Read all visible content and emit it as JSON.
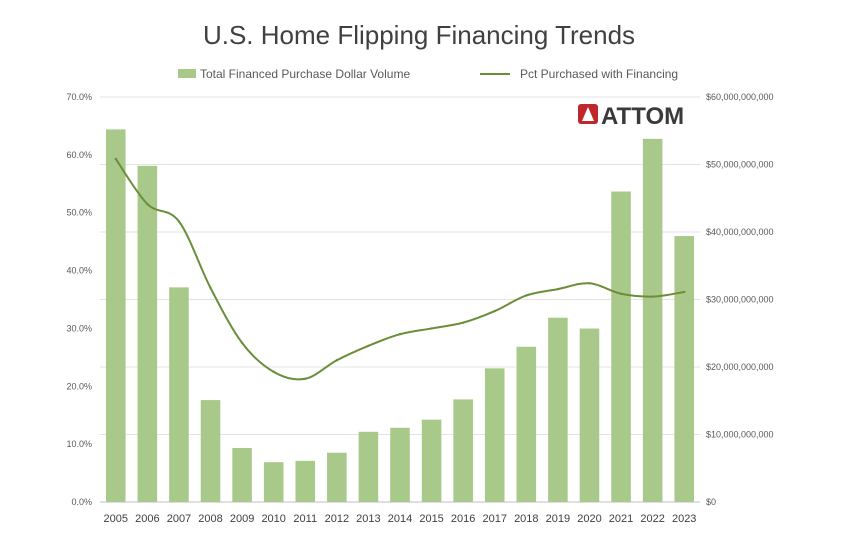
{
  "chart_data": {
    "type": "bar",
    "title": "U.S. Home Flipping Financing Trends",
    "logo_text": "ATTOM",
    "categories": [
      "2005",
      "2006",
      "2007",
      "2008",
      "2009",
      "2010",
      "2011",
      "2012",
      "2013",
      "2014",
      "2015",
      "2016",
      "2017",
      "2018",
      "2019",
      "2020",
      "2021",
      "2022",
      "2023"
    ],
    "series": [
      {
        "name": "Total Financed Purchase Dollar Volume",
        "type": "bar",
        "axis": "right",
        "color": "#a9c98a",
        "values": [
          55200000000,
          49800000000,
          31800000000,
          15100000000,
          8000000000,
          5900000000,
          6100000000,
          7300000000,
          10400000000,
          11000000000,
          12200000000,
          15200000000,
          19800000000,
          23000000000,
          27300000000,
          25700000000,
          46000000000,
          53800000000,
          39400000000
        ]
      },
      {
        "name": "Pct Purchased with Financing",
        "type": "line",
        "axis": "left",
        "color": "#6b8e3a",
        "values": [
          59.3,
          51.5,
          48.5,
          37.0,
          27.5,
          22.5,
          21.3,
          24.5,
          27.0,
          29.0,
          30.0,
          31.0,
          33.0,
          35.7,
          36.8,
          37.8,
          36.0,
          35.5,
          36.3
        ]
      }
    ],
    "yleft": {
      "min": 0,
      "max": 70,
      "step": 10,
      "tick_labels": [
        "0.0%",
        "10.0%",
        "20.0%",
        "30.0%",
        "40.0%",
        "50.0%",
        "60.0%",
        "70.0%"
      ]
    },
    "yright": {
      "min": 0,
      "max": 60000000000,
      "step": 10000000000,
      "tick_labels": [
        "$0",
        "$10,000,000,000",
        "$20,000,000,000",
        "$30,000,000,000",
        "$40,000,000,000",
        "$50,000,000,000",
        "$60,000,000,000"
      ]
    },
    "grid": true,
    "legend": "top"
  }
}
